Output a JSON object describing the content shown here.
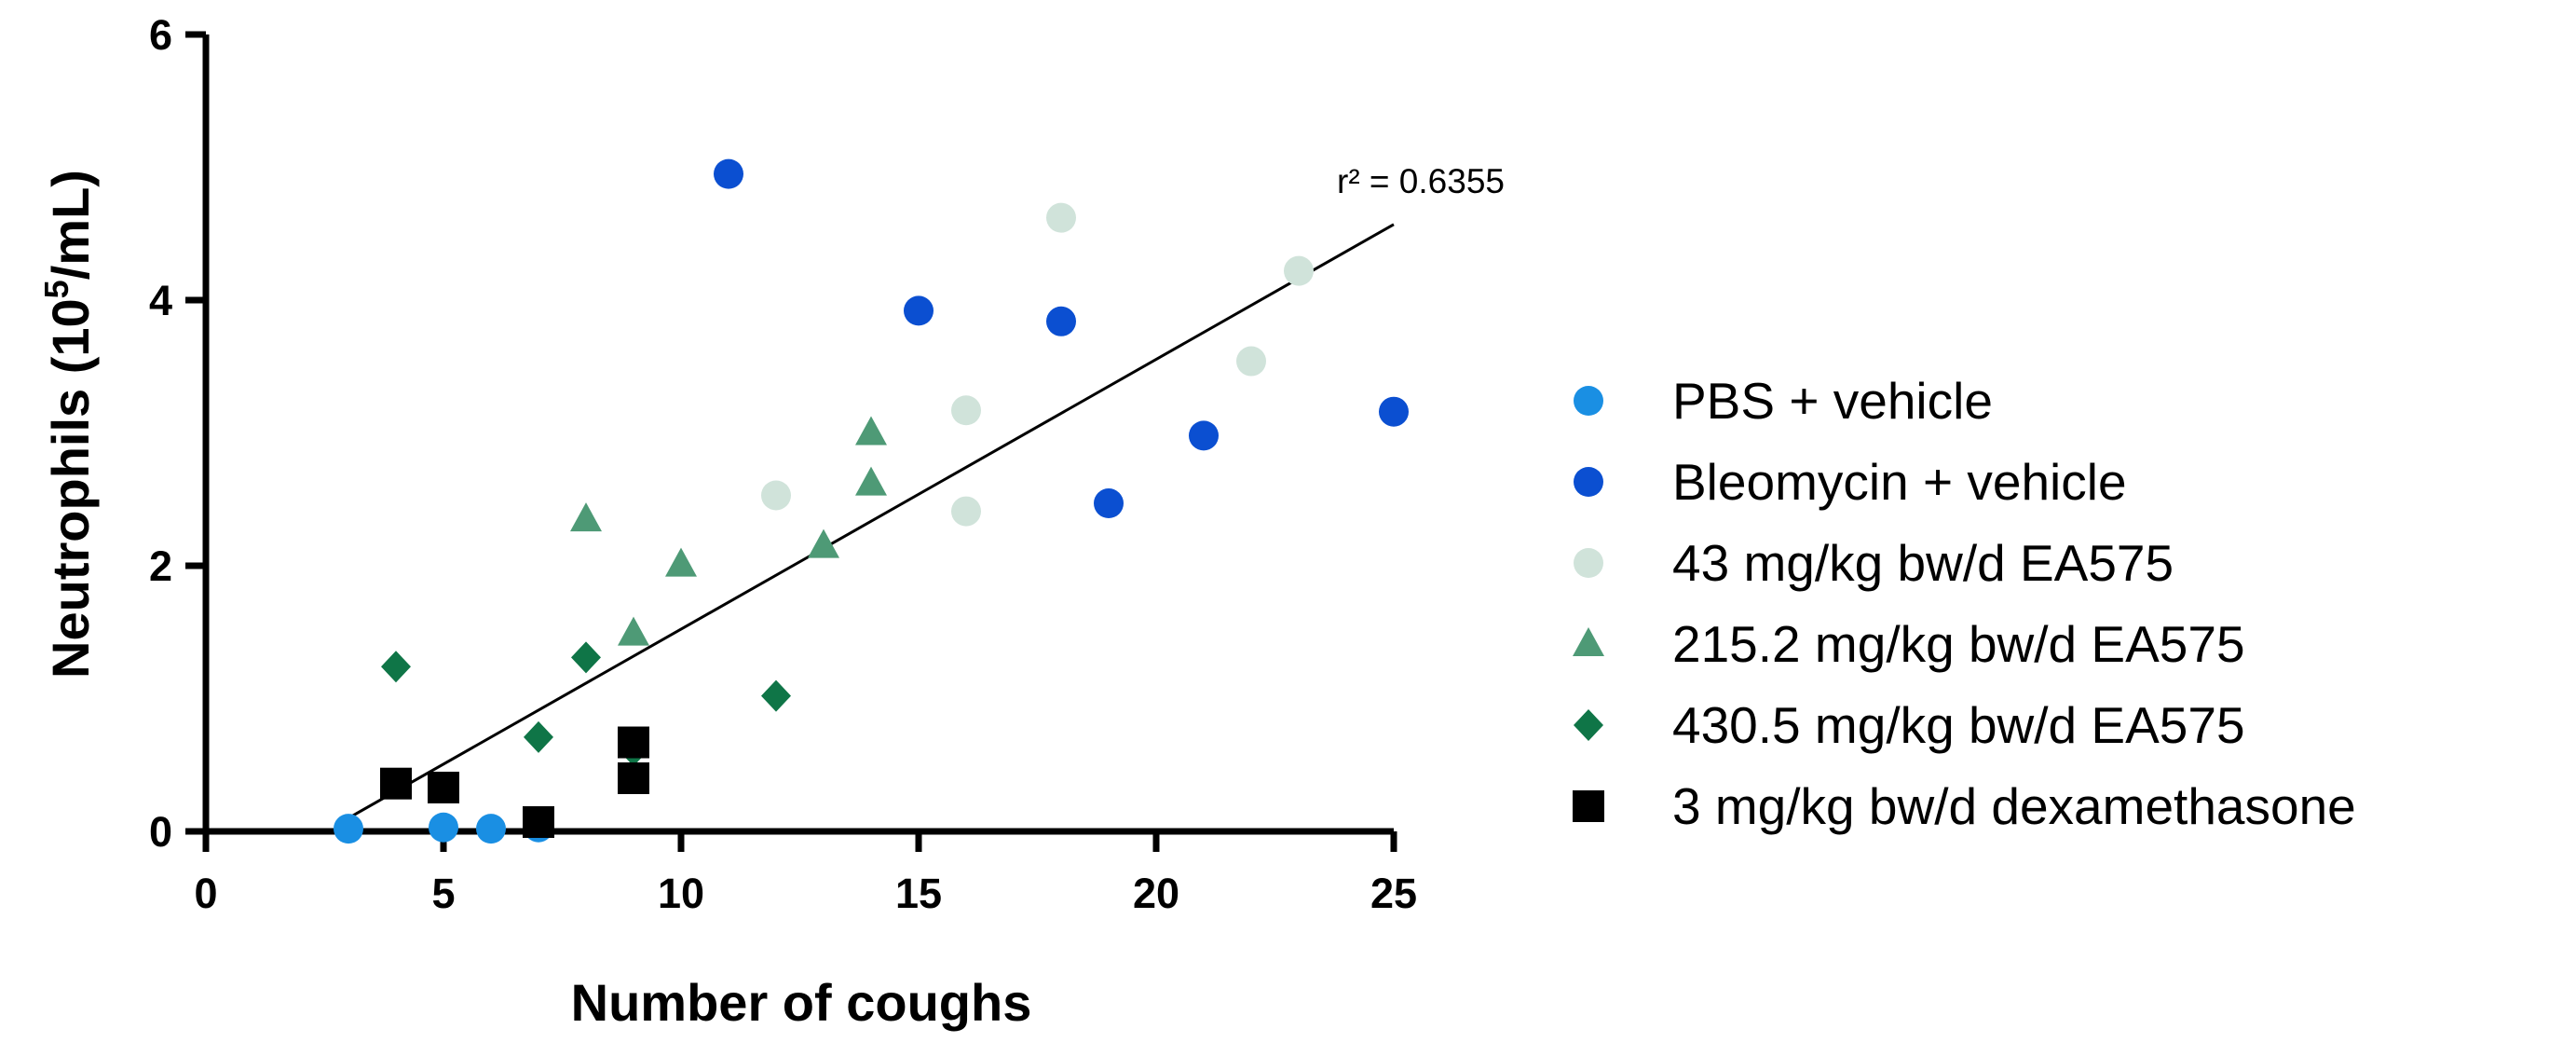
{
  "chart_data": {
    "type": "scatter",
    "title": "",
    "xlabel": "Number of coughs",
    "ylabel_main": "Neutrophils (10",
    "ylabel_sup": "5",
    "ylabel_end": "/mL)",
    "xlim": [
      0,
      25
    ],
    "ylim": [
      0,
      6
    ],
    "xticks": [
      0,
      5,
      10,
      15,
      20,
      25
    ],
    "yticks": [
      0,
      2,
      4,
      6
    ],
    "grid": false,
    "legend_position": "right",
    "annotation": "r² = 0.6355",
    "regression": {
      "x1": 3,
      "y1": 0.1,
      "x2": 25,
      "y2": 4.57
    },
    "series": [
      {
        "name": "PBS + vehicle",
        "marker": "circle",
        "color": "#1a8fe3",
        "points": [
          [
            3,
            0.02
          ],
          [
            5,
            0.03
          ],
          [
            6,
            0.02
          ],
          [
            7,
            0.04
          ],
          [
            7,
            0.03
          ]
        ]
      },
      {
        "name": "Bleomycin + vehicle",
        "marker": "circle",
        "color": "#0b4fd1",
        "points": [
          [
            11,
            4.95
          ],
          [
            15,
            3.92
          ],
          [
            18,
            3.84
          ],
          [
            19,
            2.47
          ],
          [
            21,
            2.98
          ],
          [
            25,
            3.16
          ]
        ]
      },
      {
        "name": "43 mg/kg bw/d EA575",
        "marker": "circle",
        "color": "#d0e3da",
        "points": [
          [
            12,
            2.53
          ],
          [
            16,
            3.17
          ],
          [
            16,
            2.41
          ],
          [
            18,
            4.62
          ],
          [
            22,
            3.54
          ],
          [
            23,
            4.22
          ]
        ]
      },
      {
        "name": "215.2 mg/kg bw/d EA575",
        "marker": "triangle",
        "color": "#4e9a76",
        "points": [
          [
            8,
            2.35
          ],
          [
            9,
            1.49
          ],
          [
            10,
            2.01
          ],
          [
            13,
            2.15
          ],
          [
            14,
            3.0
          ],
          [
            14,
            2.62
          ]
        ]
      },
      {
        "name": "430.5 mg/kg bw/d EA575",
        "marker": "diamond",
        "color": "#0f7547",
        "points": [
          [
            4,
            1.24
          ],
          [
            7,
            0.71
          ],
          [
            8,
            1.31
          ],
          [
            9,
            0.61
          ],
          [
            12,
            1.02
          ]
        ]
      },
      {
        "name": "3 mg/kg bw/d dexamethasone",
        "marker": "square",
        "color": "#000000",
        "points": [
          [
            4,
            0.36
          ],
          [
            5,
            0.33
          ],
          [
            7,
            0.07
          ],
          [
            9,
            0.67
          ],
          [
            9,
            0.4
          ]
        ]
      }
    ]
  }
}
